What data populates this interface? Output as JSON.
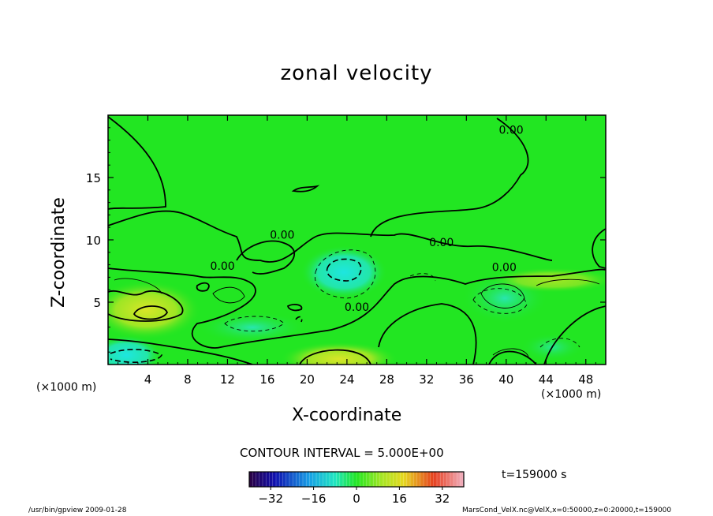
{
  "chart_data": {
    "type": "heatmap",
    "title": "zonal velocity",
    "xlabel": "X-coordinate",
    "ylabel": "Z-coordinate",
    "x_unit": "(×1000 m)",
    "y_unit": "(×1000 m)",
    "xlim": [
      0,
      50
    ],
    "ylim": [
      0,
      20
    ],
    "x_ticks": [
      4,
      8,
      12,
      16,
      20,
      24,
      28,
      32,
      36,
      40,
      44,
      48
    ],
    "y_ticks": [
      5,
      10,
      15
    ],
    "contour_interval_text": "CONTOUR INTERVAL = 5.000E+00",
    "contour_labels": [
      {
        "text": "0.00",
        "x": 40.5,
        "y": 18.5
      },
      {
        "text": "0.00",
        "x": 17.5,
        "y": 10.1
      },
      {
        "text": "0.00",
        "x": 33.5,
        "y": 9.5
      },
      {
        "text": "0.00",
        "x": 11.5,
        "y": 7.6
      },
      {
        "text": "0.00",
        "x": 39.8,
        "y": 7.5
      },
      {
        "text": "0.00",
        "x": 25.0,
        "y": 4.3
      }
    ],
    "colorbar": {
      "ticks": [
        -32,
        -16,
        0,
        16,
        32
      ],
      "range": [
        -40,
        40
      ]
    },
    "time_label": "t=159000  s",
    "colors": {
      "background_field": "#22e622",
      "low_values": "#20e6d8",
      "high_values": "#d8e628",
      "contour": "#000000"
    }
  },
  "footer": {
    "left": "/usr/bin/gpview  2009-01-28",
    "right": "MarsCond_VelX.nc@VelX,x=0:50000,z=0:20000,t=159000"
  }
}
